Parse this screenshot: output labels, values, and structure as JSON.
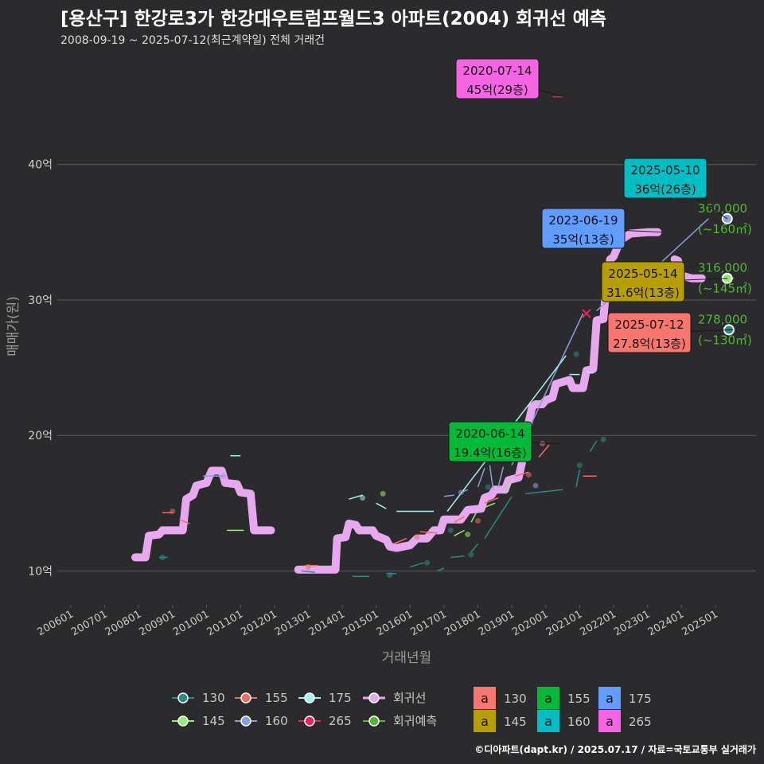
{
  "header": {
    "title": "[용산구] 한강로3가 한강대우트럼프월드3 아파트(2004) 회귀선 예측",
    "subtitle": "2008-09-19 ~ 2025-07-12(최근계약일) 전체 거래건"
  },
  "credit": "©디아파트(dapt.kr) / 2025.07.17 / 자료=국토교통부 실거래가",
  "colors": {
    "background": "#2b2b2d",
    "grid": "#5a5a5a",
    "regression": "#e8a8f0",
    "forecast": "#54b535",
    "s130": "#2b8a87",
    "s145": "#90ee70",
    "s155": "#f06b62",
    "s160": "#8a9ed8",
    "s175": "#a8f0ee",
    "s265": "#e8245e"
  },
  "chart_data": {
    "type": "line",
    "xlabel": "거래년월",
    "ylabel": "매매가(원)",
    "xlim": [
      2005.6,
      2026.2
    ],
    "ylim": [
      7.5,
      48.5
    ],
    "yticks": [
      10,
      20,
      30,
      40
    ],
    "ytick_labels": [
      "10억",
      "20억",
      "30억",
      "40억"
    ],
    "xticks": [
      2006,
      2007,
      2008,
      2009,
      2010,
      2011,
      2012,
      2013,
      2014,
      2015,
      2016,
      2017,
      2018,
      2019,
      2020,
      2021,
      2022,
      2023,
      2024,
      2025
    ],
    "xtick_labels": [
      "200601",
      "200701",
      "200801",
      "200901",
      "201001",
      "201101",
      "201201",
      "201301",
      "201401",
      "201501",
      "201601",
      "201701",
      "201801",
      "201901",
      "202001",
      "202101",
      "202201",
      "202301",
      "202401",
      "202501"
    ],
    "regression": {
      "name": "회귀선",
      "segments": [
        [
          [
            2007.9,
            11.0
          ],
          [
            2008.2,
            11.0
          ],
          [
            2008.3,
            12.6
          ],
          [
            2008.6,
            12.7
          ],
          [
            2008.7,
            13.0
          ],
          [
            2009.3,
            13.0
          ],
          [
            2009.4,
            15.3
          ],
          [
            2009.6,
            15.6
          ],
          [
            2009.7,
            16.3
          ],
          [
            2010.0,
            16.5
          ],
          [
            2010.15,
            17.4
          ],
          [
            2010.45,
            17.4
          ],
          [
            2010.55,
            16.5
          ],
          [
            2010.9,
            16.4
          ],
          [
            2011.0,
            15.8
          ],
          [
            2011.3,
            15.7
          ],
          [
            2011.4,
            13.0
          ],
          [
            2011.9,
            13.0
          ]
        ],
        [
          [
            2012.7,
            10.1
          ],
          [
            2013.1,
            10.1
          ],
          [
            2013.6,
            10.1
          ],
          [
            2013.8,
            10.1
          ],
          [
            2013.85,
            12.4
          ],
          [
            2014.1,
            12.5
          ],
          [
            2014.2,
            13.5
          ],
          [
            2014.4,
            13.4
          ],
          [
            2014.5,
            13.0
          ],
          [
            2014.9,
            13.0
          ],
          [
            2015.0,
            12.6
          ],
          [
            2015.3,
            12.3
          ],
          [
            2015.4,
            11.8
          ],
          [
            2015.6,
            11.7
          ],
          [
            2015.8,
            11.8
          ],
          [
            2016.0,
            11.9
          ],
          [
            2016.2,
            12.4
          ],
          [
            2016.5,
            12.4
          ],
          [
            2016.7,
            13.0
          ],
          [
            2016.9,
            13.0
          ],
          [
            2017.0,
            13.8
          ],
          [
            2017.5,
            13.8
          ],
          [
            2017.7,
            14.5
          ],
          [
            2018.1,
            14.6
          ],
          [
            2018.2,
            15.4
          ],
          [
            2018.4,
            15.6
          ],
          [
            2018.5,
            16.0
          ],
          [
            2018.8,
            16.0
          ],
          [
            2018.9,
            16.7
          ],
          [
            2019.2,
            16.9
          ],
          [
            2019.3,
            18.0
          ],
          [
            2019.4,
            19.3
          ],
          [
            2019.5,
            21.0
          ],
          [
            2019.6,
            22.1
          ],
          [
            2019.7,
            22.3
          ],
          [
            2019.9,
            22.3
          ],
          [
            2020.0,
            22.6
          ],
          [
            2020.2,
            22.8
          ],
          [
            2020.3,
            23.8
          ],
          [
            2020.7,
            24.1
          ],
          [
            2020.8,
            23.5
          ],
          [
            2021.1,
            23.5
          ],
          [
            2021.2,
            24.8
          ],
          [
            2021.4,
            24.9
          ],
          [
            2021.5,
            28.5
          ],
          [
            2021.7,
            28.6
          ],
          [
            2021.8,
            31.5
          ],
          [
            2021.9,
            33.0
          ],
          [
            2022.0,
            33.2
          ],
          [
            2022.2,
            34.4
          ],
          [
            2022.5,
            34.9
          ],
          [
            2023.0,
            35.0
          ],
          [
            2023.3,
            35.0
          ]
        ],
        [
          [
            2023.8,
            33.0
          ],
          [
            2023.9,
            32.9
          ],
          [
            2024.0,
            31.8
          ],
          [
            2024.3,
            31.6
          ],
          [
            2024.6,
            31.6
          ]
        ]
      ]
    },
    "series": [
      {
        "name": "130",
        "color_key": "s130",
        "points": [
          [
            2008.6,
            11.0
          ],
          [
            2008.85,
            11.0
          ],
          [
            2012.8,
            10.0
          ],
          [
            2013.2,
            9.9
          ],
          [
            2014.3,
            9.6
          ],
          [
            2014.8,
            9.6
          ],
          [
            2015.3,
            9.8
          ],
          [
            2015.6,
            9.8
          ],
          [
            2016.0,
            10.3
          ],
          [
            2016.4,
            10.6
          ],
          [
            2016.8,
            10.0
          ],
          [
            2017.0,
            10.2
          ],
          [
            2017.2,
            11.0
          ],
          [
            2017.6,
            11.1
          ],
          [
            2017.8,
            11.4
          ],
          [
            2018.0,
            12.0
          ],
          [
            2018.2,
            12.4
          ],
          [
            2019.0,
            15.5
          ],
          [
            2019.4,
            15.7
          ],
          [
            2020.5,
            16.0
          ],
          [
            2020.9,
            16.2
          ],
          [
            2021.0,
            17.5
          ],
          [
            2021.3,
            18.8
          ],
          [
            2021.5,
            19.6
          ],
          [
            2021.7,
            19.7
          ]
        ]
      },
      {
        "name": "145",
        "color_key": "s145",
        "points": [
          [
            2010.6,
            13.0
          ],
          [
            2011.1,
            13.0
          ],
          [
            2017.3,
            12.6
          ],
          [
            2017.6,
            13.0
          ],
          [
            2017.8,
            13.6
          ],
          [
            2017.95,
            14.3
          ],
          [
            2018.2,
            14.7
          ],
          [
            2018.5,
            15.0
          ],
          [
            2018.8,
            15.8
          ],
          [
            2019.0,
            16.6
          ],
          [
            2019.1,
            16.7
          ]
        ]
      },
      {
        "name": "155",
        "color_key": "s155",
        "points": [
          [
            2008.7,
            14.3
          ],
          [
            2009.0,
            14.3
          ],
          [
            2009.2,
            13.8
          ],
          [
            2009.5,
            13.5
          ],
          [
            2012.9,
            10.4
          ],
          [
            2013.3,
            10.4
          ],
          [
            2015.5,
            12.0
          ],
          [
            2015.9,
            12.4
          ],
          [
            2016.3,
            12.9
          ],
          [
            2016.8,
            12.8
          ],
          [
            2017.3,
            13.6
          ],
          [
            2017.6,
            14.0
          ],
          [
            2018.2,
            15.0
          ],
          [
            2018.6,
            15.4
          ],
          [
            2019.1,
            17.0
          ],
          [
            2019.5,
            17.3
          ],
          [
            2019.8,
            18.4
          ],
          [
            2020.1,
            19.3
          ],
          [
            2021.1,
            17.0
          ],
          [
            2021.5,
            17.0
          ]
        ]
      },
      {
        "name": "160",
        "color_key": "s160",
        "points": [
          [
            2009.9,
            17.0
          ],
          [
            2010.5,
            17.0
          ],
          [
            2017.0,
            15.5
          ],
          [
            2017.3,
            15.6
          ],
          [
            2017.5,
            15.8
          ],
          [
            2017.7,
            16.0
          ],
          [
            2018.0,
            16.2
          ],
          [
            2018.2,
            17.6
          ],
          [
            2018.35,
            17.8
          ],
          [
            2018.45,
            16.0
          ],
          [
            2018.6,
            16.2
          ],
          [
            2018.75,
            17.7
          ],
          [
            2019.0,
            17.8
          ],
          [
            2021.1,
            29.0
          ],
          [
            2021.5,
            29.2
          ],
          [
            2021.8,
            29.9
          ],
          [
            2022.2,
            30.0
          ],
          [
            2024.8,
            36.0
          ],
          [
            2025.35,
            36.0
          ]
        ]
      },
      {
        "name": "175",
        "color_key": "s175",
        "points": [
          [
            2010.7,
            18.5
          ],
          [
            2011.0,
            18.5
          ],
          [
            2014.2,
            15.3
          ],
          [
            2014.6,
            15.6
          ],
          [
            2015.0,
            15.0
          ],
          [
            2015.3,
            14.6
          ],
          [
            2015.6,
            14.4
          ],
          [
            2016.7,
            14.4
          ],
          [
            2017.1,
            14.4
          ],
          [
            2020.6,
            25.9
          ],
          [
            2020.7,
            24.5
          ],
          [
            2021.0,
            24.5
          ],
          [
            2021.2,
            24.7
          ],
          [
            2021.4,
            24.6
          ]
        ]
      },
      {
        "name": "265",
        "color_key": "s265",
        "points": [
          [
            2020.2,
            45.0
          ],
          [
            2020.55,
            45.0
          ]
        ]
      },
      {
        "name": "회귀예측",
        "color_key": "forecast",
        "points": [
          [
            2025.35,
            31.6
          ],
          [
            2025.55,
            31.6
          ]
        ]
      }
    ],
    "scatter": [
      {
        "x": 2008.7,
        "y": 11.0,
        "color_key": "s130"
      },
      {
        "x": 2009.0,
        "y": 14.4,
        "color_key": "s155"
      },
      {
        "x": 2010.5,
        "y": 17.0,
        "color_key": "s160"
      },
      {
        "x": 2013.0,
        "y": 10.3,
        "color_key": "s155"
      },
      {
        "x": 2014.6,
        "y": 15.4,
        "color_key": "s175"
      },
      {
        "x": 2015.2,
        "y": 15.7,
        "color_key": "s145"
      },
      {
        "x": 2015.4,
        "y": 9.7,
        "color_key": "s130"
      },
      {
        "x": 2016.2,
        "y": 12.5,
        "color_key": "s155"
      },
      {
        "x": 2016.5,
        "y": 10.6,
        "color_key": "s130"
      },
      {
        "x": 2017.2,
        "y": 13.0,
        "color_key": "s130"
      },
      {
        "x": 2017.5,
        "y": 15.8,
        "color_key": "s160"
      },
      {
        "x": 2017.7,
        "y": 12.7,
        "color_key": "s145"
      },
      {
        "x": 2017.8,
        "y": 11.2,
        "color_key": "s130"
      },
      {
        "x": 2018.0,
        "y": 13.7,
        "color_key": "s155"
      },
      {
        "x": 2018.3,
        "y": 16.2,
        "color_key": "s130"
      },
      {
        "x": 2019.5,
        "y": 17.1,
        "color_key": "s155"
      },
      {
        "x": 2019.7,
        "y": 16.3,
        "color_key": "s160"
      },
      {
        "x": 2019.9,
        "y": 19.4,
        "color_key": "s155"
      },
      {
        "x": 2020.9,
        "y": 26.0,
        "color_key": "s130"
      },
      {
        "x": 2021.0,
        "y": 17.8,
        "color_key": "s130"
      },
      {
        "x": 2021.7,
        "y": 19.7,
        "color_key": "s130"
      },
      {
        "x": 2021.9,
        "y": 30.0,
        "color_key": "s130"
      }
    ],
    "crosses": [
      {
        "x": 2021.2,
        "y": 29.0,
        "color_key": "s265"
      }
    ],
    "end_markers": [
      {
        "x": 2025.35,
        "y": 36.0,
        "color_key": "s160"
      },
      {
        "x": 2025.35,
        "y": 31.6,
        "color_key": "s145"
      },
      {
        "x": 2025.4,
        "y": 27.8,
        "color_key": "s130"
      }
    ],
    "callouts": [
      {
        "date": "2020-07-14",
        "label": "45억(29층)",
        "x": 2020.55,
        "y": 45.0,
        "color_key": "s265"
      },
      {
        "date": "2025-05-10",
        "label": "36억(26층)",
        "x": 2025.35,
        "y": 36.0,
        "color_key": "s160"
      },
      {
        "date": "2023-06-19",
        "label": "35억(13층)",
        "x": 2023.46,
        "y": 35.0,
        "color_key": "s175"
      },
      {
        "date": "2025-05-14",
        "label": "31.6억(13층)",
        "x": 2025.36,
        "y": 31.6,
        "color_key": "s145"
      },
      {
        "date": "2025-07-12",
        "label": "27.8억(13층)",
        "x": 2025.53,
        "y": 27.8,
        "color_key": "s155"
      },
      {
        "date": "2020-06-14",
        "label": "19.4억(16층)",
        "x": 2020.45,
        "y": 19.4,
        "color_key": "s155"
      }
    ],
    "forecast_labels": [
      {
        "value": "360,000",
        "area": "(~160㎡)",
        "y": 36.0
      },
      {
        "value": "316,000",
        "area": "(~145㎡)",
        "y": 31.6
      },
      {
        "value": "278,000",
        "area": "(~130㎡)",
        "y": 27.8
      }
    ],
    "legend": {
      "placement": "bottom",
      "lines": [
        {
          "label": "130",
          "color_key": "s130"
        },
        {
          "label": "155",
          "color_key": "s155"
        },
        {
          "label": "175",
          "color_key": "s175"
        },
        {
          "label": "회귀선",
          "color_key": "regression"
        },
        {
          "label": "145",
          "color_key": "s145"
        },
        {
          "label": "160",
          "color_key": "s160"
        },
        {
          "label": "265",
          "color_key": "s265"
        },
        {
          "label": "회귀예측",
          "color_key": "forecast"
        }
      ],
      "swatches": [
        {
          "glyph": "a",
          "label": "130",
          "color": "#f8766d"
        },
        {
          "glyph": "a",
          "label": "155",
          "color": "#00ba38"
        },
        {
          "glyph": "a",
          "label": "175",
          "color": "#619cff"
        },
        {
          "glyph": "a",
          "label": "145",
          "color": "#b79f00"
        },
        {
          "glyph": "a",
          "label": "160",
          "color": "#00bfc4"
        },
        {
          "glyph": "a",
          "label": "265",
          "color": "#f564e3"
        }
      ]
    }
  }
}
